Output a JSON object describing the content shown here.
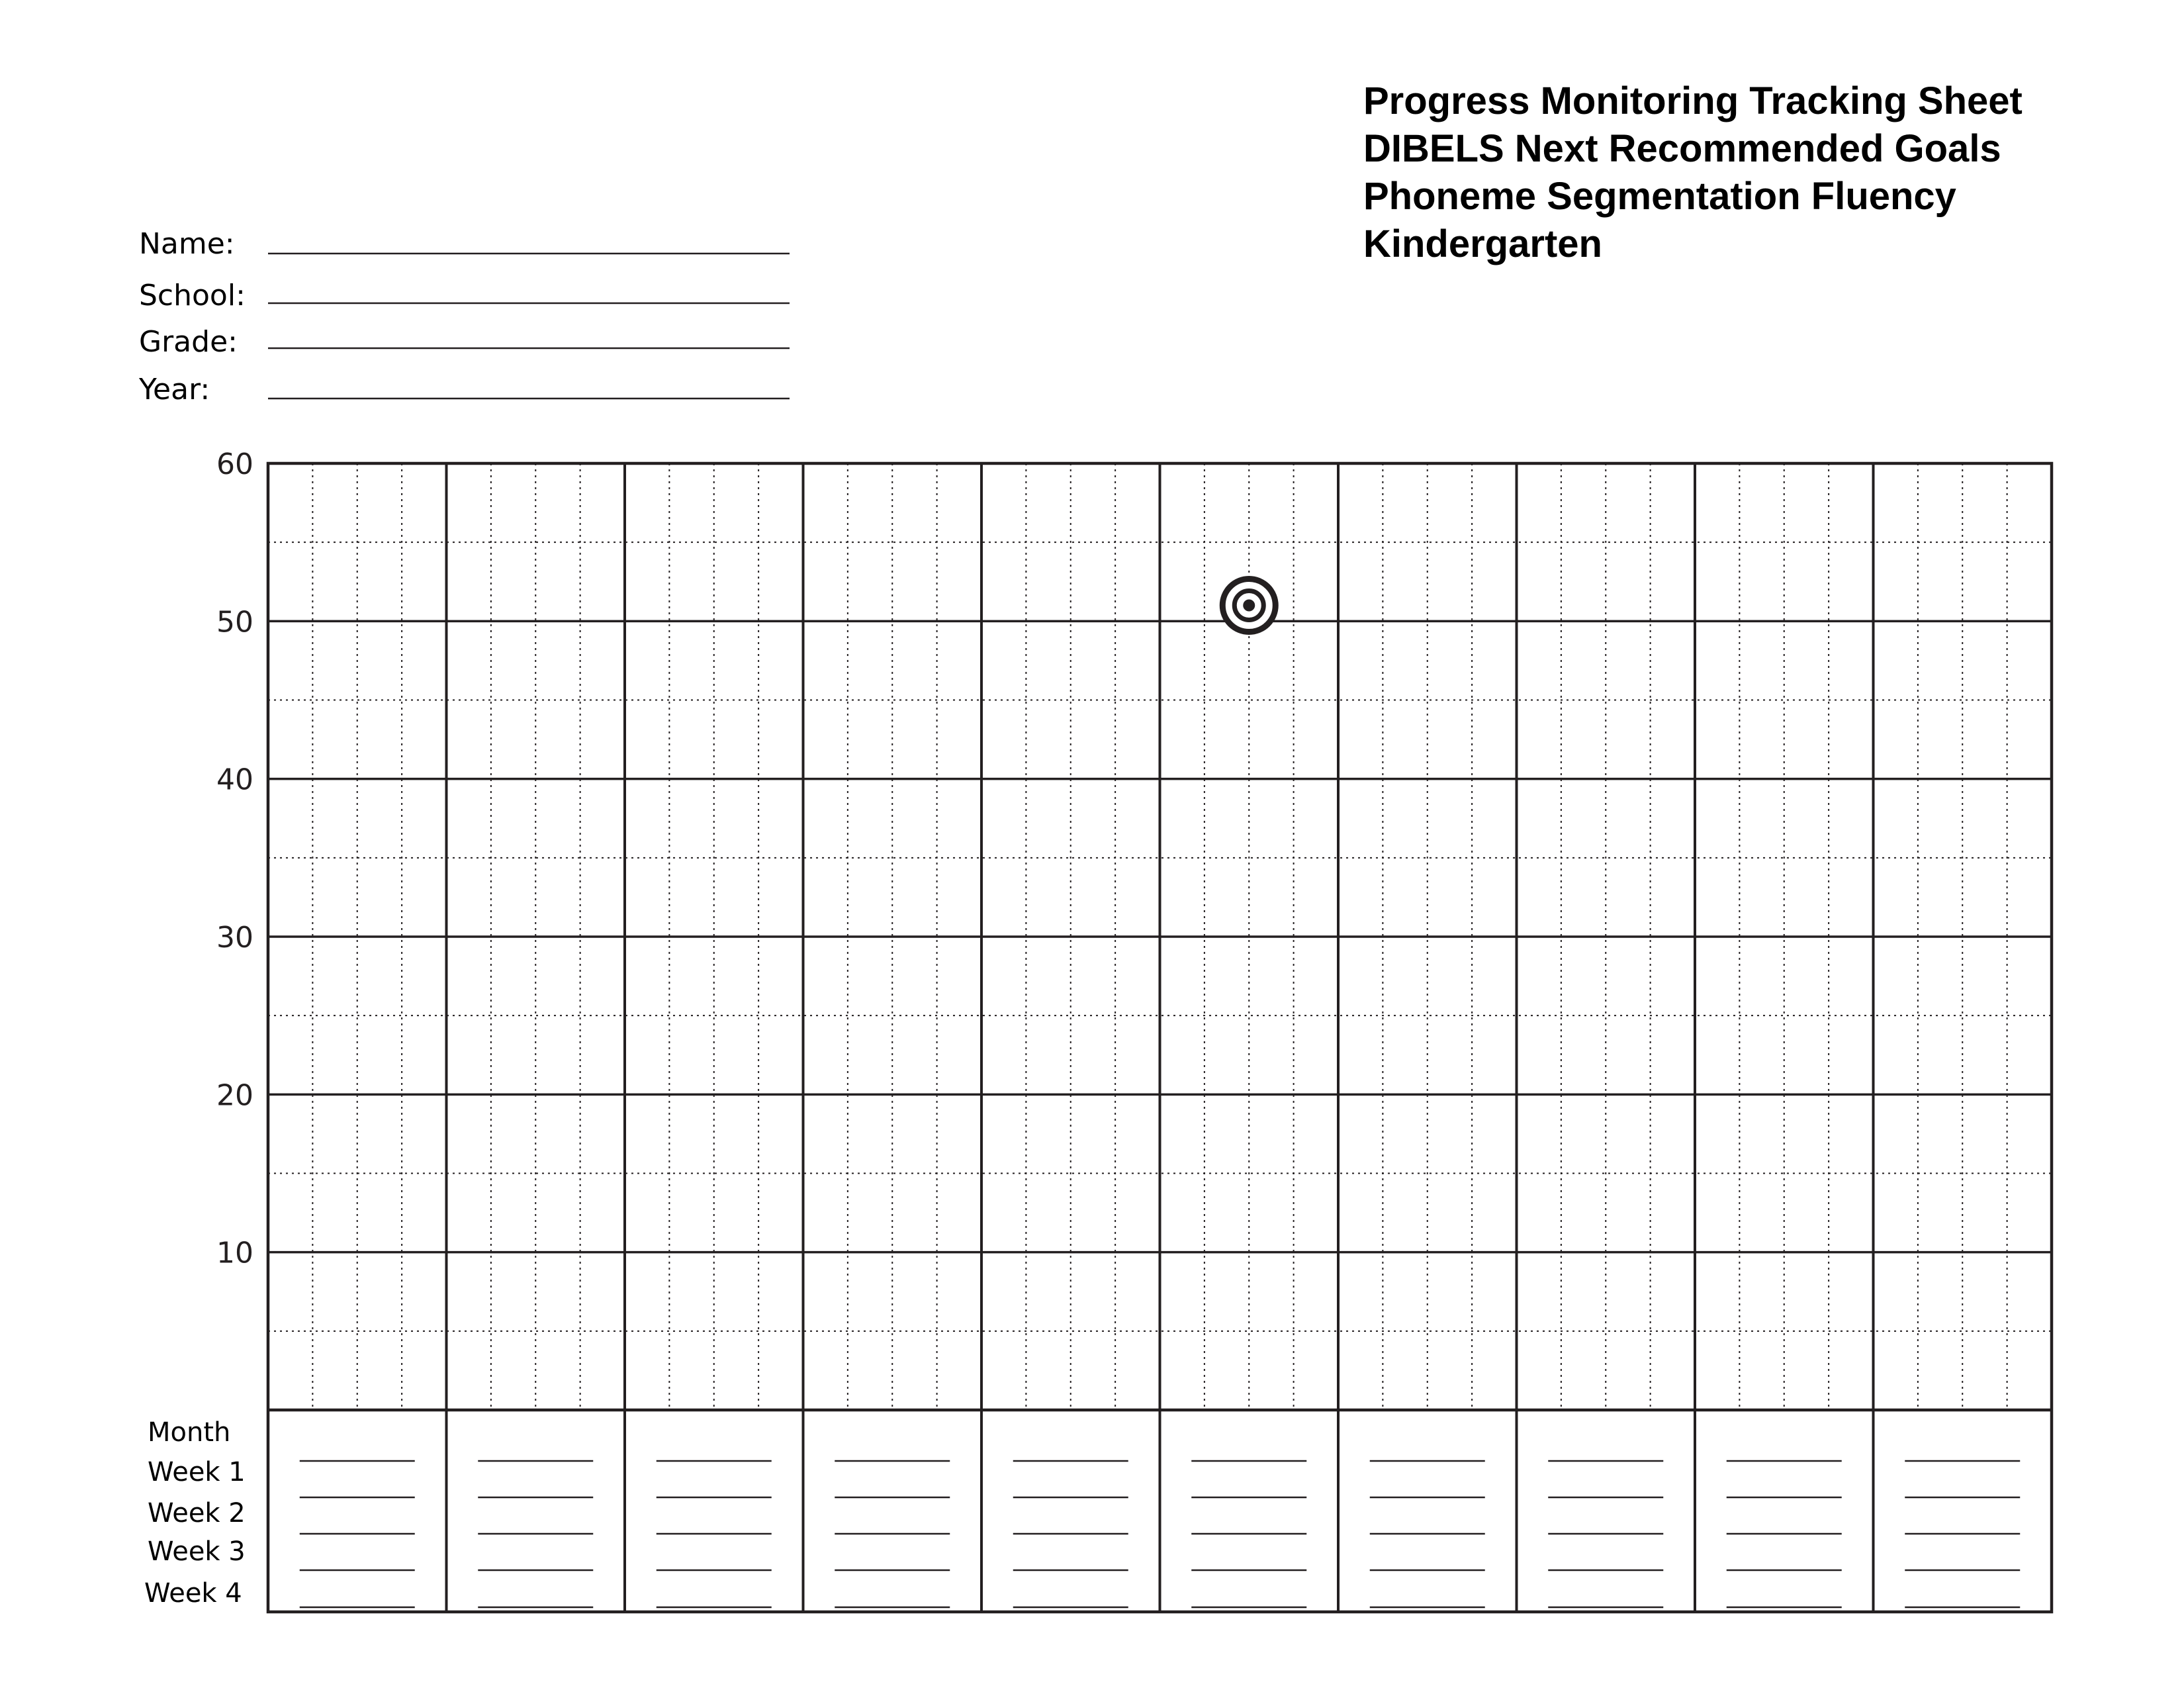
{
  "title": {
    "lines": [
      "Progress Monitoring Tracking Sheet",
      "DIBELS Next Recommended Goals",
      "Phoneme Segmentation Fluency",
      "Kindergarten"
    ]
  },
  "fields": [
    {
      "label": "Name:",
      "value": ""
    },
    {
      "label": "School:",
      "value": ""
    },
    {
      "label": "Grade:",
      "value": ""
    },
    {
      "label": "Year:",
      "value": ""
    }
  ],
  "row_labels": [
    "Month",
    "Week 1",
    "Week 2",
    "Week 3",
    "Week 4"
  ],
  "icons": {
    "goal_marker": "bullseye-target-icon"
  },
  "chart_data": {
    "type": "scatter",
    "title": "",
    "xlabel": "",
    "ylabel": "",
    "ylim": [
      0,
      60
    ],
    "y_ticks": [
      10,
      20,
      30,
      40,
      50,
      60
    ],
    "grid": true,
    "month_columns": 10,
    "weeks_per_month": 4,
    "goal": {
      "marker": "bullseye",
      "column": 6,
      "week": 2,
      "value": 51
    },
    "series": []
  }
}
